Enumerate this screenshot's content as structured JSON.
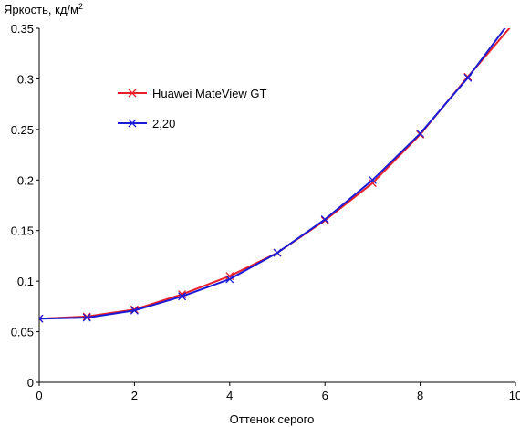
{
  "chart_data": {
    "type": "line",
    "ylabel_main": "Яркость, кд/м",
    "ylabel_sup": "2",
    "xlabel": "Оттенок серого",
    "xlim": [
      0,
      10
    ],
    "ylim": [
      0,
      0.35
    ],
    "x_ticks": [
      "0",
      "2",
      "4",
      "6",
      "8",
      "10"
    ],
    "y_ticks": [
      "0",
      "0.05",
      "0.1",
      "0.15",
      "0.2",
      "0.25",
      "0.3",
      "0.35"
    ],
    "grid": false,
    "legend_position": "upper-left",
    "series": [
      {
        "name": "Huawei MateView GT",
        "color": "#e8202a",
        "marker": "x",
        "x": [
          0,
          1,
          2,
          3,
          4,
          5,
          6,
          7,
          8,
          9,
          10
        ],
        "y": [
          0.063,
          0.065,
          0.072,
          0.087,
          0.105,
          0.128,
          0.16,
          0.197,
          0.245,
          0.302,
          0.357
        ]
      },
      {
        "name": "2,20",
        "color": "#1b1bd6",
        "marker": "x",
        "x": [
          0,
          1,
          2,
          3,
          4,
          5,
          6,
          7,
          8,
          9,
          10
        ],
        "y": [
          0.063,
          0.064,
          0.071,
          0.085,
          0.102,
          0.128,
          0.161,
          0.2,
          0.246,
          0.301,
          0.364
        ]
      }
    ]
  }
}
